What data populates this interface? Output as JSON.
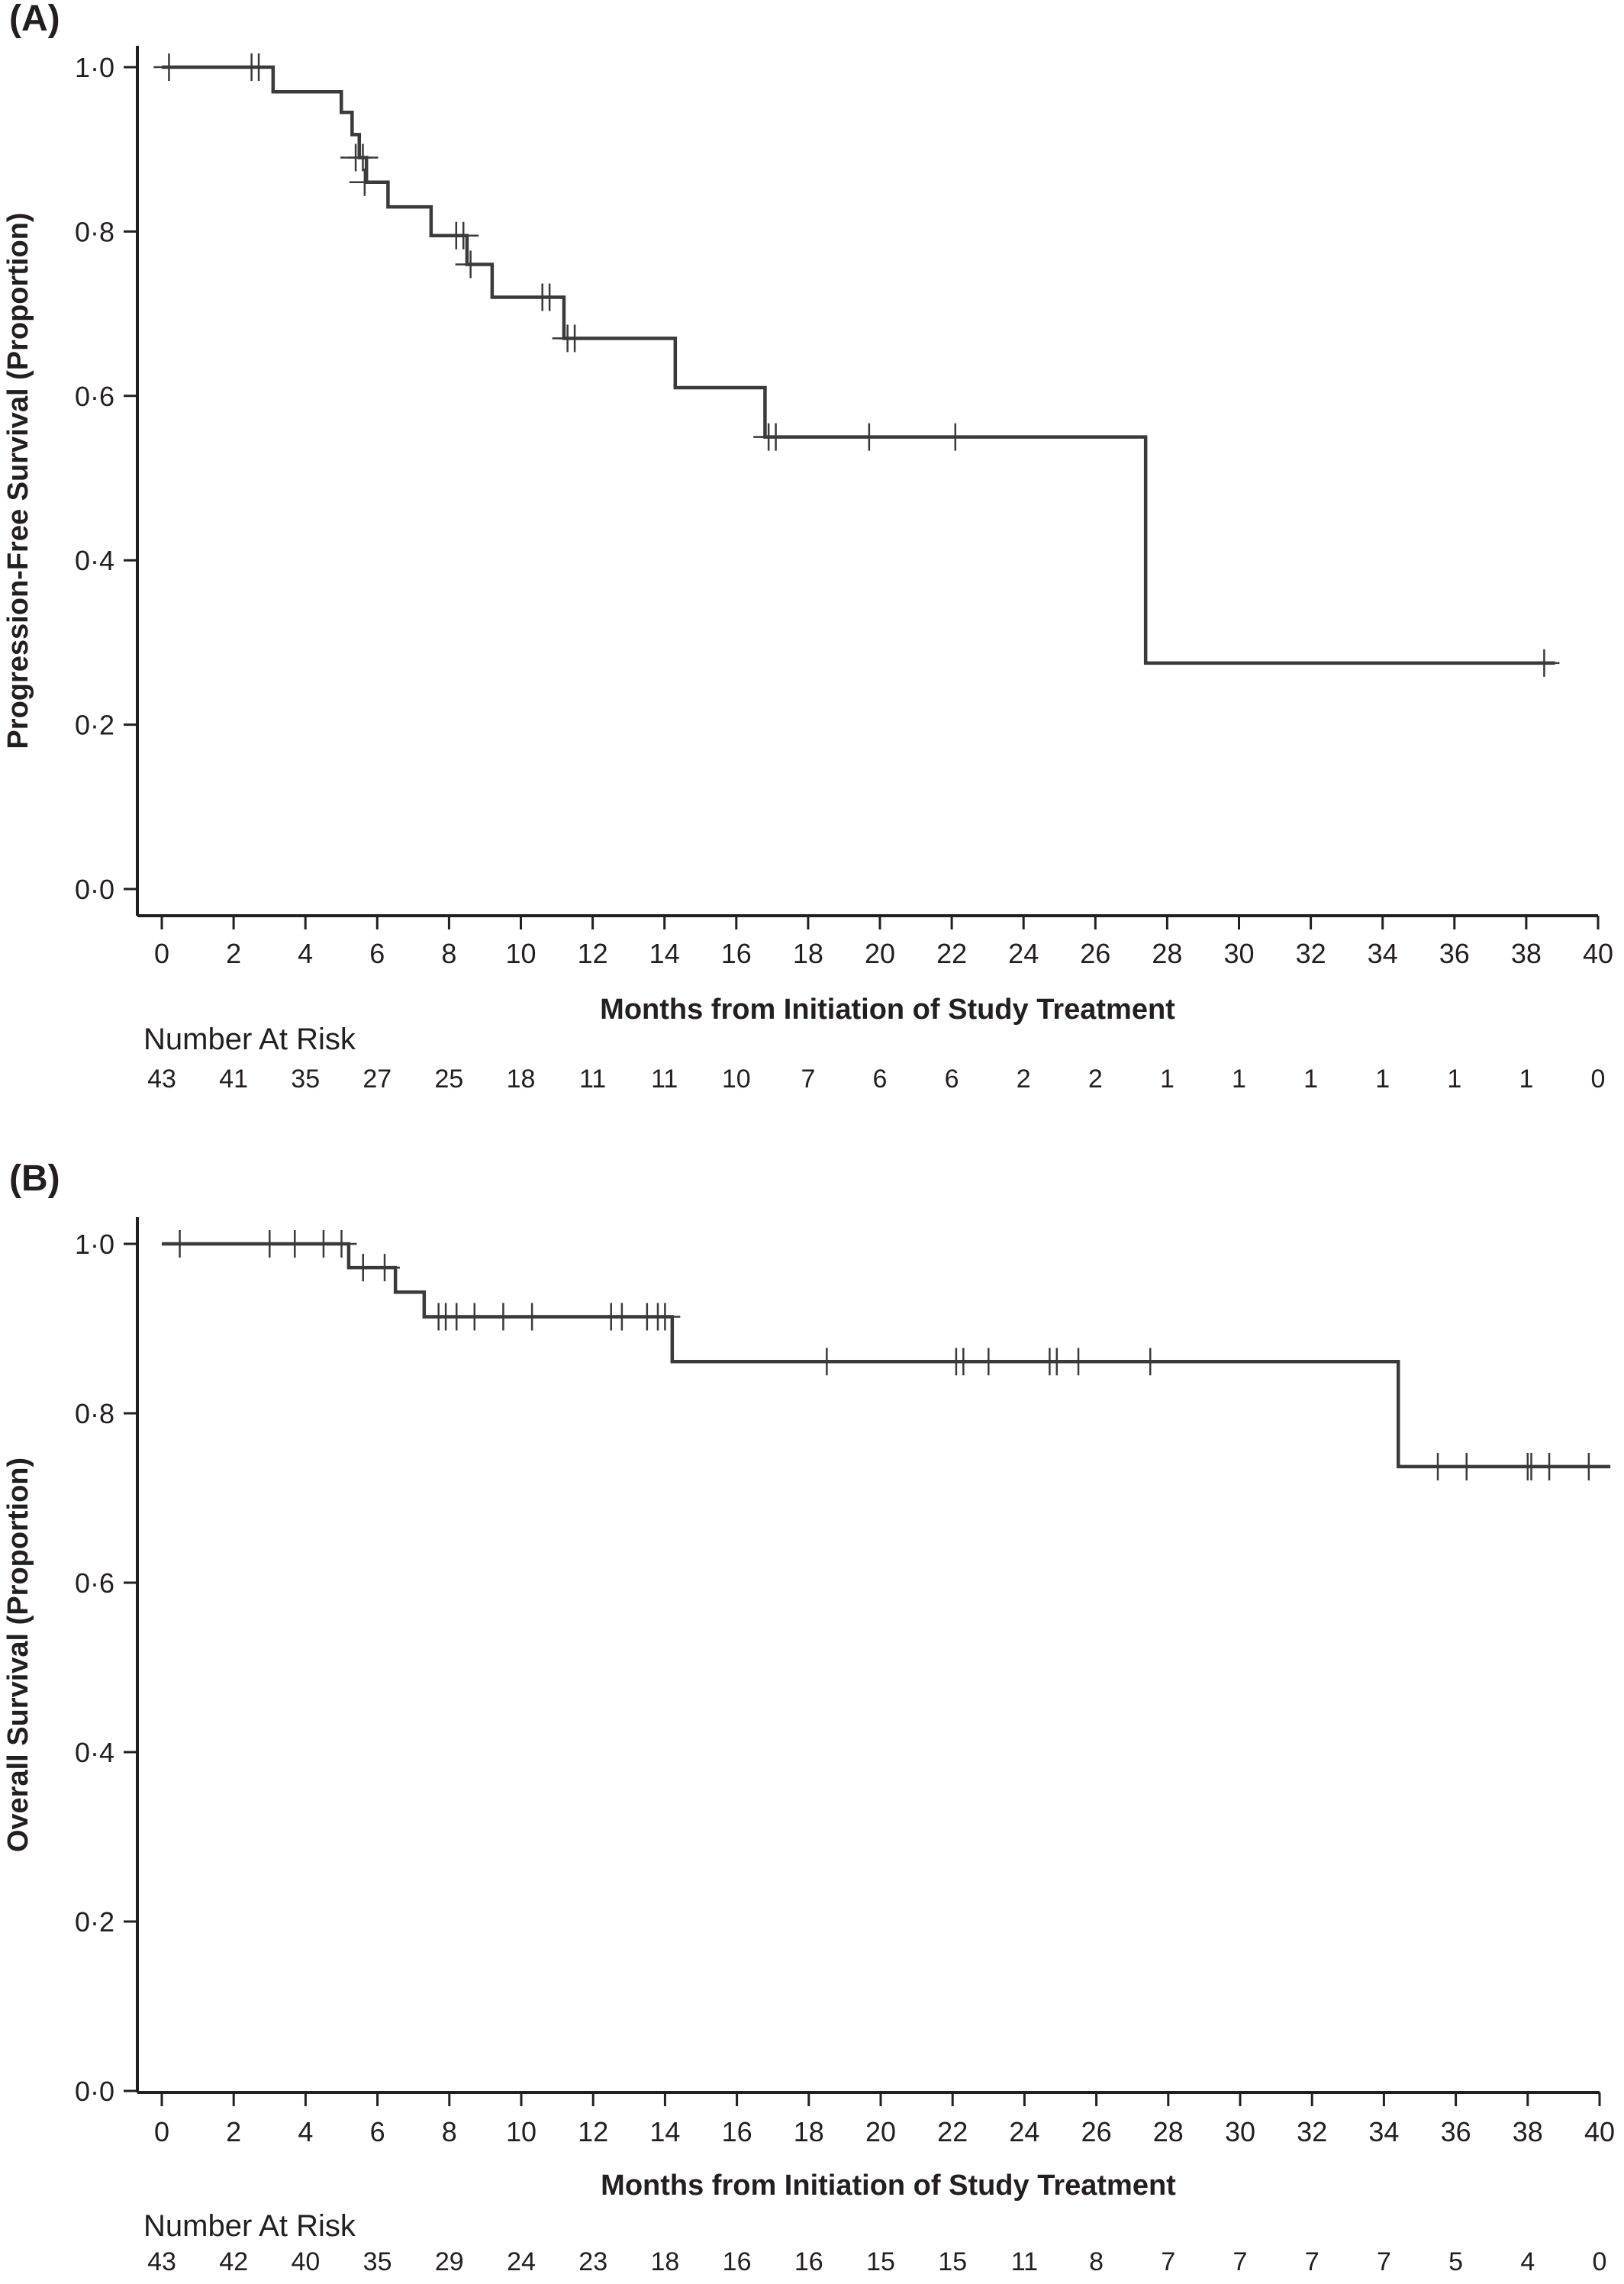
{
  "panels": [
    {
      "label": "(A)",
      "ylabel": "Progression-Free Survival (Proportion)",
      "xlabel": "Months from Initiation of Study Treatment",
      "risk_header": "Number At Risk"
    },
    {
      "label": "(B)",
      "ylabel": "Overall Survival (Proportion)",
      "xlabel": "Months from Initiation of Study Treatment",
      "risk_header": "Number At Risk"
    }
  ],
  "chart_data": [
    {
      "type": "line",
      "subtype": "kaplan-meier step",
      "panel": "(A)",
      "xlabel": "Months from Initiation of Study Treatment",
      "ylabel": "Progression-Free Survival (Proportion)",
      "xlim": [
        0,
        40
      ],
      "ylim": [
        0,
        1
      ],
      "xticks": [
        "0",
        "2",
        "4",
        "6",
        "8",
        "10",
        "12",
        "14",
        "16",
        "18",
        "20",
        "22",
        "24",
        "26",
        "28",
        "30",
        "32",
        "34",
        "36",
        "38",
        "40"
      ],
      "yticks": [
        "0·0",
        "0·2",
        "0·4",
        "0·6",
        "0·8",
        "1·0"
      ],
      "steps": [
        {
          "x": 0,
          "y": 1.0
        },
        {
          "x": 3.1,
          "y": 0.97
        },
        {
          "x": 5.0,
          "y": 0.945
        },
        {
          "x": 5.3,
          "y": 0.918
        },
        {
          "x": 5.5,
          "y": 0.89
        },
        {
          "x": 5.7,
          "y": 0.86
        },
        {
          "x": 6.3,
          "y": 0.83
        },
        {
          "x": 7.5,
          "y": 0.795
        },
        {
          "x": 8.5,
          "y": 0.76
        },
        {
          "x": 9.2,
          "y": 0.72
        },
        {
          "x": 11.2,
          "y": 0.67
        },
        {
          "x": 14.3,
          "y": 0.61
        },
        {
          "x": 16.8,
          "y": 0.55
        },
        {
          "x": 27.4,
          "y": 0.275
        },
        {
          "x": 38.8,
          "y": 0.275
        }
      ],
      "censored": [
        {
          "x": 0.2,
          "y": 1.0
        },
        {
          "x": 2.5,
          "y": 1.0
        },
        {
          "x": 2.7,
          "y": 1.0
        },
        {
          "x": 5.4,
          "y": 0.89
        },
        {
          "x": 5.6,
          "y": 0.89
        },
        {
          "x": 5.65,
          "y": 0.86
        },
        {
          "x": 8.2,
          "y": 0.795
        },
        {
          "x": 8.4,
          "y": 0.795
        },
        {
          "x": 8.6,
          "y": 0.76
        },
        {
          "x": 10.6,
          "y": 0.72
        },
        {
          "x": 10.8,
          "y": 0.72
        },
        {
          "x": 11.3,
          "y": 0.67
        },
        {
          "x": 11.5,
          "y": 0.67
        },
        {
          "x": 16.9,
          "y": 0.55
        },
        {
          "x": 17.1,
          "y": 0.55
        },
        {
          "x": 19.7,
          "y": 0.55
        },
        {
          "x": 22.1,
          "y": 0.55
        },
        {
          "x": 38.5,
          "y": 0.275
        }
      ],
      "number_at_risk": [
        "43",
        "41",
        "35",
        "27",
        "25",
        "18",
        "11",
        "11",
        "10",
        "7",
        "6",
        "6",
        "2",
        "2",
        "1",
        "1",
        "1",
        "1",
        "1",
        "1",
        "0"
      ]
    },
    {
      "type": "line",
      "subtype": "kaplan-meier step",
      "panel": "(B)",
      "xlabel": "Months from Initiation of Study Treatment",
      "ylabel": "Overall Survival (Proportion)",
      "xlim": [
        0,
        40
      ],
      "ylim": [
        0,
        1
      ],
      "xticks": [
        "0",
        "2",
        "4",
        "6",
        "8",
        "10",
        "12",
        "14",
        "16",
        "18",
        "20",
        "22",
        "24",
        "26",
        "28",
        "30",
        "32",
        "34",
        "36",
        "38",
        "40"
      ],
      "yticks": [
        "0·0",
        "0·2",
        "0·4",
        "0·6",
        "0·8",
        "1·0"
      ],
      "steps": [
        {
          "x": 0,
          "y": 1.0
        },
        {
          "x": 5.2,
          "y": 0.972
        },
        {
          "x": 6.5,
          "y": 0.943
        },
        {
          "x": 7.3,
          "y": 0.914
        },
        {
          "x": 14.2,
          "y": 0.861
        },
        {
          "x": 34.4,
          "y": 0.737
        },
        {
          "x": 40.3,
          "y": 0.737
        }
      ],
      "censored": [
        {
          "x": 0.5,
          "y": 1.0
        },
        {
          "x": 3.0,
          "y": 1.0
        },
        {
          "x": 3.7,
          "y": 1.0
        },
        {
          "x": 4.5,
          "y": 1.0
        },
        {
          "x": 5.0,
          "y": 1.0
        },
        {
          "x": 5.6,
          "y": 0.972
        },
        {
          "x": 6.2,
          "y": 0.972
        },
        {
          "x": 7.7,
          "y": 0.914
        },
        {
          "x": 7.9,
          "y": 0.914
        },
        {
          "x": 8.2,
          "y": 0.914
        },
        {
          "x": 8.7,
          "y": 0.914
        },
        {
          "x": 9.5,
          "y": 0.914
        },
        {
          "x": 10.3,
          "y": 0.914
        },
        {
          "x": 12.5,
          "y": 0.914
        },
        {
          "x": 12.8,
          "y": 0.914
        },
        {
          "x": 13.5,
          "y": 0.914
        },
        {
          "x": 13.8,
          "y": 0.914
        },
        {
          "x": 14.0,
          "y": 0.914
        },
        {
          "x": 18.5,
          "y": 0.861
        },
        {
          "x": 22.1,
          "y": 0.861
        },
        {
          "x": 22.3,
          "y": 0.861
        },
        {
          "x": 23.0,
          "y": 0.861
        },
        {
          "x": 24.7,
          "y": 0.861
        },
        {
          "x": 24.9,
          "y": 0.861
        },
        {
          "x": 25.5,
          "y": 0.861
        },
        {
          "x": 27.5,
          "y": 0.861
        },
        {
          "x": 35.5,
          "y": 0.737
        },
        {
          "x": 36.3,
          "y": 0.737
        },
        {
          "x": 38.0,
          "y": 0.737
        },
        {
          "x": 38.1,
          "y": 0.737
        },
        {
          "x": 38.6,
          "y": 0.737
        },
        {
          "x": 39.7,
          "y": 0.737
        }
      ],
      "number_at_risk": [
        "43",
        "42",
        "40",
        "35",
        "29",
        "24",
        "23",
        "18",
        "16",
        "16",
        "15",
        "15",
        "11",
        "8",
        "7",
        "7",
        "7",
        "7",
        "5",
        "4",
        "0"
      ]
    }
  ]
}
